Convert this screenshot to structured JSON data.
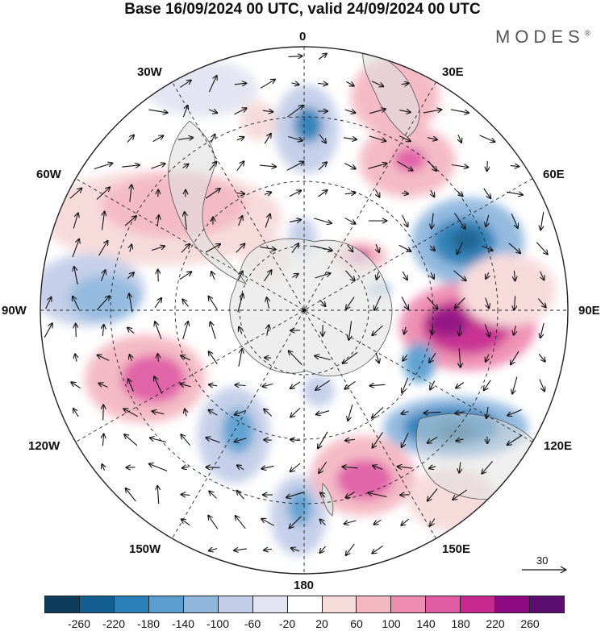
{
  "title": "Base 16/09/2024 00 UTC, valid 24/09/2024 00 UTC",
  "brand": "MODES",
  "brand_mark": "®",
  "longitude_labels": {
    "lon_0": "0",
    "lon_30e": "30E",
    "lon_60e": "60E",
    "lon_90e": "90E",
    "lon_120e": "120E",
    "lon_150e": "150E",
    "lon_180": "180",
    "lon_150w": "150W",
    "lon_120w": "120W",
    "lon_90w": "90W",
    "lon_60w": "60W",
    "lon_30w": "30W"
  },
  "reference_vector": "30",
  "colorbar": {
    "colors": [
      "#0d3b5c",
      "#125e8e",
      "#2a7fb8",
      "#5a9fd0",
      "#8fb7de",
      "#c2cde8",
      "#e2e4f2",
      "#ffffff",
      "#f7dada",
      "#f4b8c3",
      "#ef8db0",
      "#e05ca4",
      "#c7298f",
      "#8f0a80",
      "#5a0d6e"
    ],
    "ticks": [
      "-260",
      "-220",
      "-180",
      "-140",
      "-100",
      "-60",
      "-20",
      "20",
      "60",
      "100",
      "140",
      "180",
      "220",
      "260"
    ]
  },
  "map": {
    "projection": "south polar stereographic",
    "anomaly_field": "geopotential height anomaly (shaded) with wind vectors"
  }
}
